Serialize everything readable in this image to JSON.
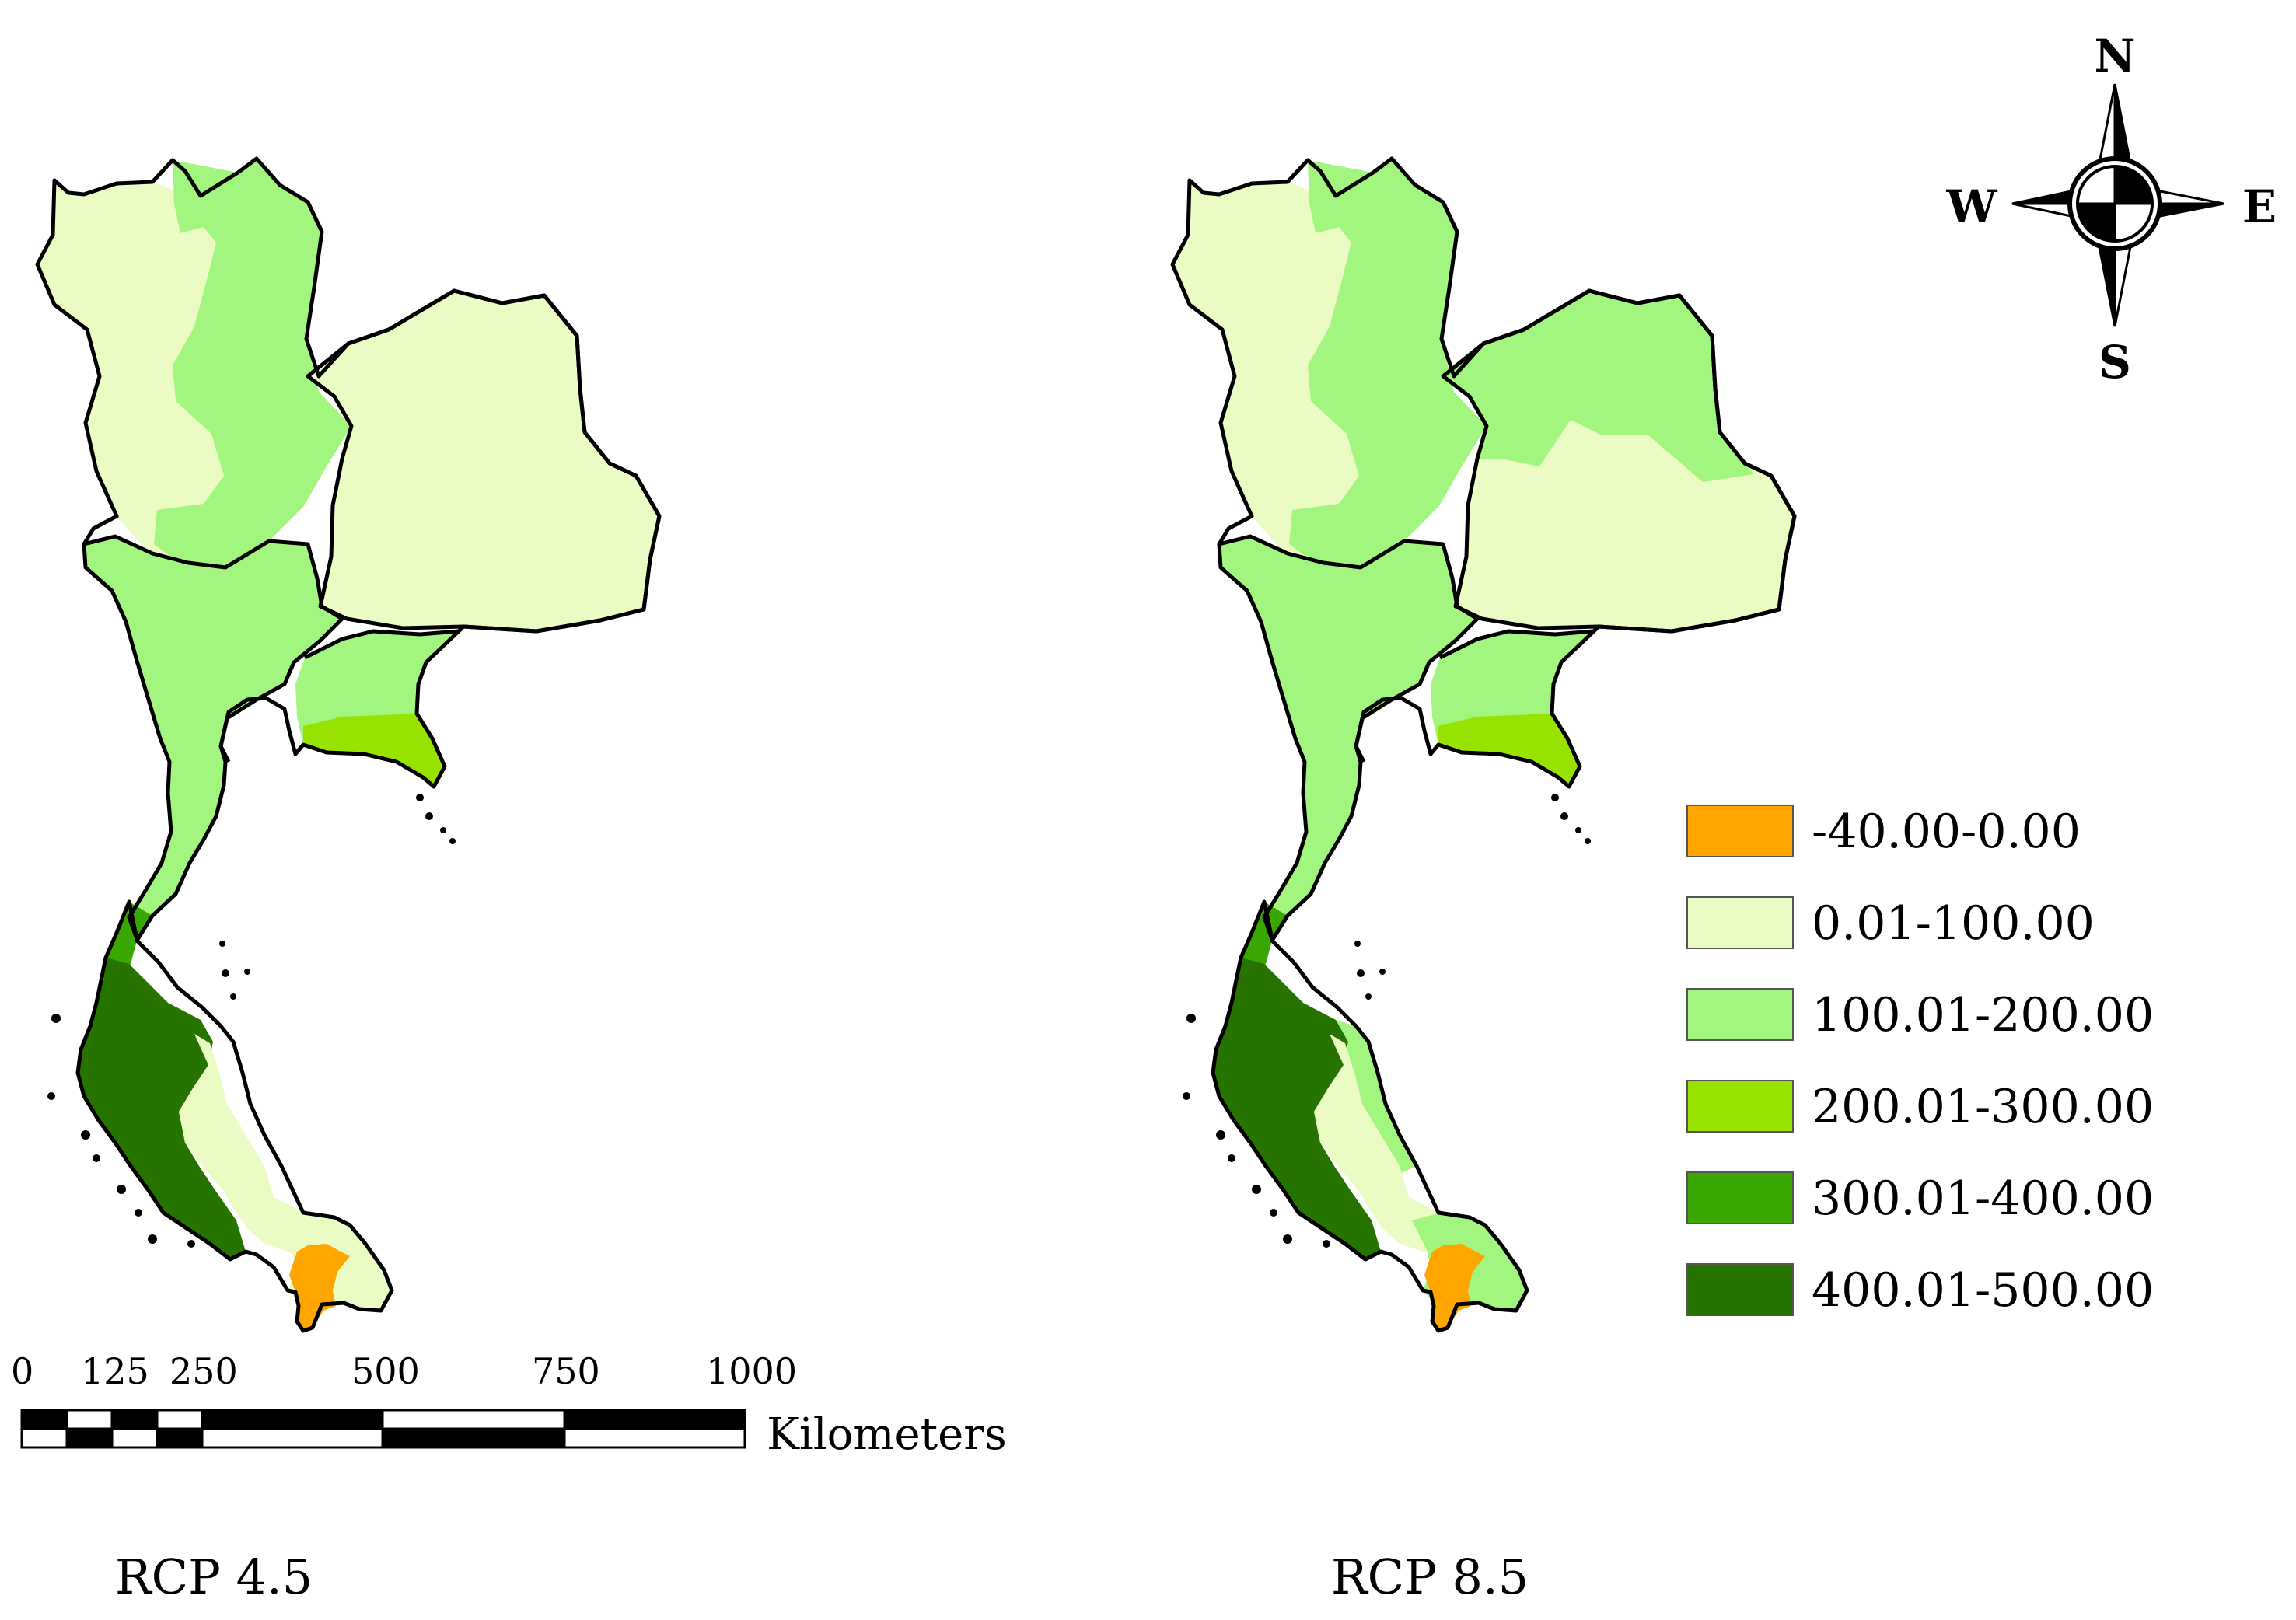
{
  "panels": [
    {
      "label": "RCP 4.5",
      "regions": {
        "north_west": "0.01-100.00",
        "north_central": "100.01-200.00",
        "northeast": "0.01-100.00",
        "central": "100.01-200.00",
        "east": "100.01-200.00",
        "east_coast": "200.01-300.00",
        "isthmus": "100.01-200.00",
        "south_west_upper": "300.01-400.00",
        "south_west": "400.01-500.00",
        "south_east": "0.01-100.00",
        "far_south": "0.01-100.00",
        "far_south_pocket": "-40.00-0.00"
      }
    },
    {
      "label": "RCP 8.5",
      "regions": {
        "north_west": "0.01-100.00",
        "north_central": "100.01-200.00",
        "northeast": "0.01-100.00",
        "northeast_north": "100.01-200.00",
        "central": "100.01-200.00",
        "east": "100.01-200.00",
        "east_coast": "200.01-300.00",
        "isthmus": "100.01-200.00",
        "south_west_upper": "300.01-400.00",
        "south_west": "400.01-500.00",
        "south_mid": "100.01-200.00",
        "south_east": "0.01-100.00",
        "far_south": "100.01-200.00",
        "far_south_pocket": "-40.00-0.00"
      }
    }
  ],
  "legend": [
    {
      "label": "-40.00-0.00",
      "color": "#FFA500"
    },
    {
      "label": "0.01-100.00",
      "color": "#EAFBC4"
    },
    {
      "label": "100.01-200.00",
      "color": "#A2F57E"
    },
    {
      "label": "200.01-300.00",
      "color": "#98E200"
    },
    {
      "label": "300.01-400.00",
      "color": "#38A800"
    },
    {
      "label": "400.01-500.00",
      "color": "#267300"
    }
  ],
  "scale_bar": {
    "ticks": [
      "0",
      "125",
      "250",
      "500",
      "750",
      "1000"
    ],
    "unit": "Kilometers"
  },
  "compass": {
    "north": "N",
    "south": "S",
    "east": "E",
    "west": "W"
  }
}
